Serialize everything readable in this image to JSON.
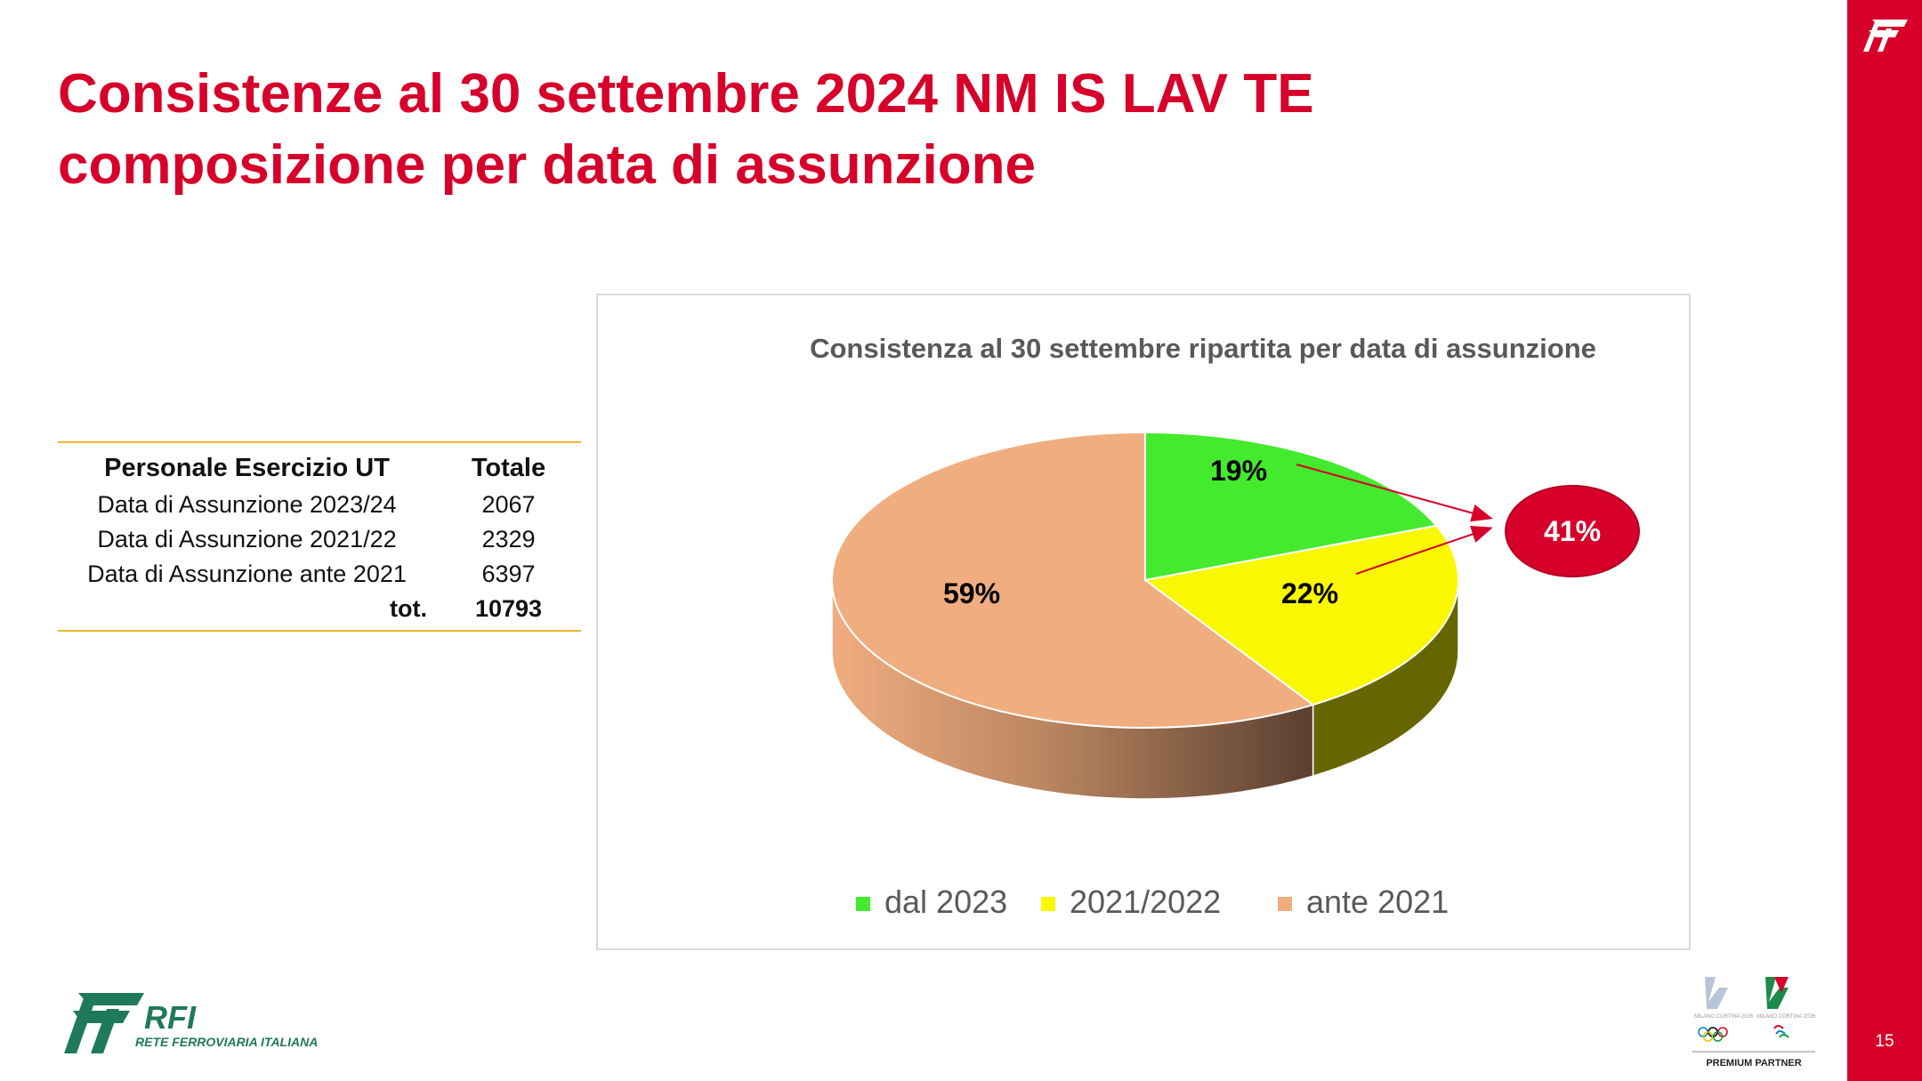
{
  "title": {
    "line1": "Consistenze al 30 settembre 2024 NM IS LAV TE",
    "line2": "composizione per data di assunzione"
  },
  "table": {
    "headers": [
      "Personale Esercizio UT",
      "Totale"
    ],
    "rows": [
      {
        "label": "Data di Assunzione 2023/24",
        "value": "2067"
      },
      {
        "label": "Data di Assunzione 2021/22",
        "value": "2329"
      },
      {
        "label": "Data di Assunzione ante 2021",
        "value": "6397"
      }
    ],
    "total_label": "tot.",
    "total_value": "10793"
  },
  "chart_data": {
    "type": "pie",
    "title": "Consistenza al 30 settembre ripartita per data di assunzione",
    "categories": [
      "dal 2023",
      "2021/2022",
      "ante 2021"
    ],
    "values": [
      19,
      22,
      59
    ],
    "value_labels": [
      "19%",
      "22%",
      "59%"
    ],
    "colors": [
      "#44ea2e",
      "#f9f800",
      "#f0ad80"
    ],
    "side_colors": [
      "#2a8a1c",
      "#666600",
      "#b98560"
    ],
    "annotation": "41%",
    "annotation_color": "#d6002a",
    "legend_position": "bottom",
    "style": "3d"
  },
  "branding": {
    "rfi_mark": "RFI",
    "rfi_subtitle": "RETE FERROVIARIA ITALIANA",
    "partner_label": "PREMIUM PARTNER",
    "partner_logo_text": "MILANO CORTINA 2026"
  },
  "page_number": "15",
  "accent_color": "#d6002a"
}
